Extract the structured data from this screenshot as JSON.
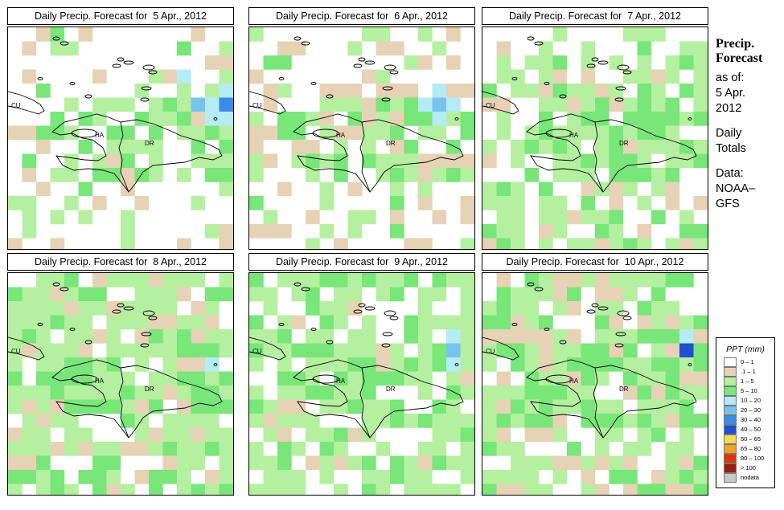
{
  "panels": [
    {
      "title": "Daily Precip. Forecast for  5 Apr., 2012",
      "seed": 11,
      "wet": 0.15,
      "dry": 0.15,
      "pools": [
        [
          3,
          12,
          4
        ],
        [
          5,
          13,
          5
        ],
        [
          5,
          15,
          6
        ],
        [
          6,
          16,
          5
        ],
        [
          6,
          14,
          4
        ],
        [
          7,
          10,
          3
        ],
        [
          8,
          16,
          3
        ],
        [
          6,
          9,
          3
        ],
        [
          5,
          18,
          3
        ]
      ]
    },
    {
      "title": "Daily Precip. Forecast for  6 Apr., 2012",
      "seed": 23,
      "wet": 0.18,
      "dry": 0.22,
      "pools": [
        [
          5,
          13,
          5
        ],
        [
          4,
          13,
          4
        ],
        [
          6,
          15,
          3
        ],
        [
          7,
          10,
          3
        ],
        [
          5,
          12,
          3
        ],
        [
          6,
          17,
          2
        ]
      ]
    },
    {
      "title": "Daily Precip. Forecast for  7 Apr., 2012",
      "seed": 37,
      "wet": 0.45,
      "dry": 0.1,
      "pools": [
        [
          5,
          13,
          3
        ],
        [
          5,
          17,
          3
        ],
        [
          4,
          12,
          2
        ],
        [
          6,
          15,
          2
        ],
        [
          9,
          11,
          2
        ]
      ]
    },
    {
      "title": "Daily Precip. Forecast for  8 Apr., 2012",
      "seed": 41,
      "wet": 0.65,
      "dry": 0.16,
      "pools": [
        [
          6,
          14,
          4
        ],
        [
          6,
          16,
          3
        ],
        [
          5,
          11,
          2
        ],
        [
          7,
          8,
          2
        ],
        [
          9,
          13,
          2
        ],
        [
          4,
          14,
          2
        ]
      ]
    },
    {
      "title": "Daily Precip. Forecast for  9 Apr., 2012",
      "seed": 53,
      "wet": 0.62,
      "dry": 0.05,
      "pools": [
        [
          5,
          14,
          5
        ],
        [
          6,
          16,
          3
        ],
        [
          4,
          16,
          2
        ],
        [
          6,
          12,
          2
        ],
        [
          7,
          9,
          3
        ],
        [
          4,
          19,
          2
        ],
        [
          5,
          19,
          2
        ]
      ]
    },
    {
      "title": "Daily Precip. Forecast for  10 Apr., 2012",
      "seed": 67,
      "wet": 0.6,
      "dry": 0.2,
      "pools": [
        [
          5,
          14,
          7
        ],
        [
          6,
          13,
          2
        ],
        [
          4,
          12,
          2
        ],
        [
          7,
          5,
          2
        ],
        [
          4,
          20,
          2
        ],
        [
          6,
          18,
          2
        ]
      ]
    }
  ],
  "map_labels": {
    "cu": "CU",
    "ha": "HA",
    "dr": "DR"
  },
  "sidebar": {
    "title_line1": "Precip.",
    "title_line2": "Forecast",
    "asof": "as of:",
    "date_line1": "5 Apr.",
    "date_line2": "2012",
    "daily": "Daily",
    "totals": "Totals",
    "data_label": "Data:",
    "source_line1": "NOAA–",
    "source_line2": "GFS"
  },
  "legend": {
    "title": "PPT (mm)",
    "items": [
      {
        "label": "0 – 1",
        "color": "#ffffff"
      },
      {
        "label": ".1 – 1",
        "color": "#e6d2b4"
      },
      {
        "label": "1 – 5",
        "color": "#b4f0a0"
      },
      {
        "label": "5 – 10",
        "color": "#78e678"
      },
      {
        "label": "10 – 20",
        "color": "#b4ebf5"
      },
      {
        "label": "20 – 30",
        "color": "#78c3eb"
      },
      {
        "label": "30 – 40",
        "color": "#3c8ce6"
      },
      {
        "label": "40 – 50",
        "color": "#1e50d2"
      },
      {
        "label": "50 – 65",
        "color": "#f5dc5a"
      },
      {
        "label": "65 – 80",
        "color": "#f5a01e"
      },
      {
        "label": "80 – 100",
        "color": "#e1320a"
      },
      {
        "label": "> 100",
        "color": "#961e14"
      },
      {
        "label": "nodata",
        "color": "#c8c8c8"
      }
    ]
  }
}
